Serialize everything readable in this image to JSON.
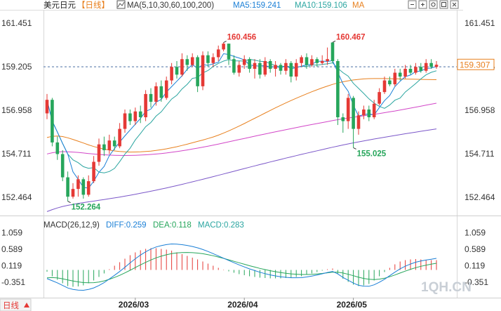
{
  "header": {
    "symbol": "美元日元",
    "period": "【日线】",
    "ma_label": "MA(5,10,30,60,100,200)",
    "ma5": "MA5:159.241",
    "ma10": "MA10:159.106",
    "ma_more": "MA"
  },
  "macd_header": {
    "label": "MACD(26,12,9)",
    "diff": "DIFF:0.259",
    "dea": "DEA:0.118",
    "macd": "MACD:0.283"
  },
  "toolbar": {
    "icons": [
      "minus-icon",
      "plus-icon",
      "gear-icon",
      "window-icon",
      "close-icon"
    ]
  },
  "footer": {
    "period_label": "日线",
    "watermark": "1QH.CN"
  },
  "colors": {
    "up": "#e53935",
    "down": "#26a65b",
    "ma5": "#1a7fd6",
    "ma10": "#2aa5a0",
    "ma30": "#e8801e",
    "ma60": "#d246c8",
    "ma100": "#7b57c9",
    "diff": "#1a7fd6",
    "dea": "#26a65b",
    "last_price_box": "#e8801e"
  },
  "chart_data": [
    {
      "type": "candlestick",
      "x_dates": [
        "2026/03",
        "2026/04",
        "2026/05"
      ],
      "ylim": [
        151.6,
        162.0
      ],
      "y_ticks_left": [
        "161.451",
        "159.205",
        "156.958",
        "154.711",
        "152.464"
      ],
      "y_ticks_right": [
        "161.451",
        "159.205",
        "156.958",
        "154.711",
        "152.464"
      ],
      "y_tick_values": [
        161.451,
        159.205,
        156.958,
        154.711,
        152.464
      ],
      "current_price": "159.307",
      "current_price_value": 159.307,
      "dashed_level": 159.205,
      "annotations": [
        {
          "text": "160.456",
          "index": 34,
          "value": 160.456,
          "kind": "high"
        },
        {
          "text": "160.467",
          "index": 55,
          "value": 160.467,
          "kind": "high"
        },
        {
          "text": "152.264",
          "index": 4,
          "value": 152.264,
          "kind": "low"
        },
        {
          "text": "155.025",
          "index": 59,
          "value": 155.025,
          "kind": "low"
        }
      ],
      "candles": [
        [
          156.8,
          157.5,
          157.8,
          156.5
        ],
        [
          157.5,
          155.3,
          157.6,
          155.1
        ],
        [
          155.3,
          154.7,
          155.6,
          154.4
        ],
        [
          154.7,
          153.5,
          154.9,
          153.3
        ],
        [
          153.5,
          152.5,
          153.8,
          152.26
        ],
        [
          152.5,
          152.9,
          153.2,
          152.4
        ],
        [
          152.9,
          153.4,
          153.6,
          152.5
        ],
        [
          153.4,
          152.6,
          153.5,
          152.4
        ],
        [
          152.6,
          153.3,
          153.6,
          152.5
        ],
        [
          153.3,
          154.3,
          154.6,
          153.2
        ],
        [
          154.3,
          155.2,
          155.5,
          154.1
        ],
        [
          155.2,
          154.9,
          155.6,
          154.6
        ],
        [
          154.9,
          155.4,
          155.7,
          154.7
        ],
        [
          155.4,
          155.1,
          155.6,
          154.9
        ],
        [
          155.1,
          156.0,
          156.3,
          155.0
        ],
        [
          156.0,
          156.8,
          157.0,
          155.8
        ],
        [
          156.8,
          156.4,
          157.0,
          156.2
        ],
        [
          156.4,
          156.9,
          157.1,
          156.2
        ],
        [
          156.9,
          156.6,
          157.2,
          156.3
        ],
        [
          156.6,
          157.8,
          158.0,
          156.4
        ],
        [
          157.8,
          157.4,
          158.1,
          157.1
        ],
        [
          157.4,
          158.2,
          158.4,
          157.2
        ],
        [
          158.2,
          157.6,
          158.5,
          157.4
        ],
        [
          157.6,
          158.5,
          158.7,
          157.5
        ],
        [
          158.5,
          159.2,
          159.4,
          158.3
        ],
        [
          159.2,
          158.8,
          159.5,
          158.6
        ],
        [
          158.8,
          159.6,
          159.9,
          158.7
        ],
        [
          159.6,
          159.3,
          159.8,
          159.0
        ],
        [
          159.3,
          159.7,
          159.9,
          159.2
        ],
        [
          159.7,
          158.2,
          159.8,
          157.9
        ],
        [
          158.2,
          159.8,
          160.0,
          158.0
        ],
        [
          159.8,
          159.4,
          160.0,
          159.2
        ],
        [
          159.4,
          159.7,
          159.9,
          159.2
        ],
        [
          159.7,
          160.1,
          160.3,
          159.5
        ],
        [
          160.1,
          160.4,
          160.46,
          160.0
        ],
        [
          160.4,
          159.6,
          160.4,
          159.3
        ],
        [
          159.6,
          158.9,
          159.8,
          158.8
        ],
        [
          158.9,
          159.3,
          159.5,
          158.7
        ],
        [
          159.3,
          159.6,
          159.8,
          159.1
        ],
        [
          159.6,
          159.1,
          159.7,
          158.9
        ],
        [
          159.1,
          159.4,
          159.6,
          158.6
        ],
        [
          159.4,
          158.8,
          159.6,
          158.6
        ],
        [
          158.8,
          159.5,
          159.7,
          158.7
        ],
        [
          159.5,
          159.1,
          159.6,
          158.9
        ],
        [
          159.1,
          159.3,
          159.5,
          158.7
        ],
        [
          159.3,
          159.0,
          159.4,
          158.8
        ],
        [
          159.0,
          159.4,
          159.6,
          158.8
        ],
        [
          159.4,
          158.7,
          159.5,
          158.4
        ],
        [
          158.7,
          159.4,
          159.6,
          158.5
        ],
        [
          159.4,
          159.7,
          159.8,
          159.2
        ],
        [
          159.7,
          159.3,
          159.9,
          159.1
        ],
        [
          159.3,
          159.6,
          159.8,
          159.2
        ],
        [
          159.6,
          159.4,
          159.7,
          159.2
        ],
        [
          159.4,
          159.5,
          159.8,
          159.3
        ],
        [
          159.5,
          159.6,
          160.2,
          159.3
        ],
        [
          160.46,
          159.5,
          160.47,
          159.4
        ],
        [
          159.5,
          156.6,
          159.6,
          156.2
        ],
        [
          156.6,
          156.4,
          156.8,
          155.8
        ],
        [
          156.4,
          157.6,
          157.8,
          156.0
        ],
        [
          157.6,
          156.0,
          157.7,
          155.03
        ],
        [
          156.0,
          156.7,
          156.9,
          155.7
        ],
        [
          156.7,
          157.0,
          157.2,
          156.5
        ],
        [
          157.0,
          156.6,
          157.2,
          156.4
        ],
        [
          156.6,
          157.3,
          157.5,
          156.5
        ],
        [
          157.3,
          157.9,
          158.1,
          157.2
        ],
        [
          157.9,
          158.5,
          158.7,
          157.8
        ],
        [
          158.5,
          158.3,
          158.7,
          158.2
        ],
        [
          158.3,
          158.9,
          159.1,
          158.2
        ],
        [
          158.9,
          158.7,
          159.1,
          158.5
        ],
        [
          158.7,
          159.1,
          159.3,
          158.6
        ],
        [
          159.1,
          158.9,
          159.3,
          158.8
        ],
        [
          158.9,
          159.2,
          159.4,
          158.8
        ],
        [
          159.2,
          159.0,
          159.4,
          158.9
        ],
        [
          159.0,
          159.4,
          159.6,
          158.9
        ],
        [
          159.4,
          159.2,
          159.6,
          159.1
        ],
        [
          159.2,
          159.31,
          159.5,
          159.1
        ]
      ]
    },
    {
      "type": "macd",
      "ylim": [
        -0.75,
        1.15
      ],
      "y_ticks_left": [
        "1.059",
        "0.589",
        "0.119",
        "-0.351"
      ],
      "y_ticks_right": [
        "1.059",
        "0.589",
        "0.119",
        "-0.351"
      ],
      "y_tick_values": [
        1.059,
        0.589,
        0.119,
        -0.351
      ],
      "histogram": [
        -0.05,
        -0.18,
        -0.28,
        -0.38,
        -0.46,
        -0.48,
        -0.47,
        -0.44,
        -0.38,
        -0.3,
        -0.2,
        -0.1,
        0.02,
        0.12,
        0.22,
        0.32,
        0.42,
        0.5,
        0.56,
        0.6,
        0.62,
        0.62,
        0.6,
        0.58,
        0.55,
        0.5,
        0.45,
        0.4,
        0.35,
        0.3,
        0.24,
        0.18,
        0.12,
        0.06,
        0.01,
        -0.04,
        -0.08,
        -0.12,
        -0.15,
        -0.18,
        -0.2,
        -0.22,
        -0.23,
        -0.24,
        -0.24,
        -0.24,
        -0.23,
        -0.22,
        -0.2,
        -0.18,
        -0.14,
        -0.1,
        -0.06,
        -0.02,
        0.02,
        0.04,
        -0.1,
        -0.25,
        -0.34,
        -0.42,
        -0.46,
        -0.44,
        -0.4,
        -0.3,
        -0.18,
        -0.06,
        0.06,
        0.16,
        0.24,
        0.28,
        0.3,
        0.31,
        0.3,
        0.29,
        0.28,
        0.28
      ]
    }
  ]
}
